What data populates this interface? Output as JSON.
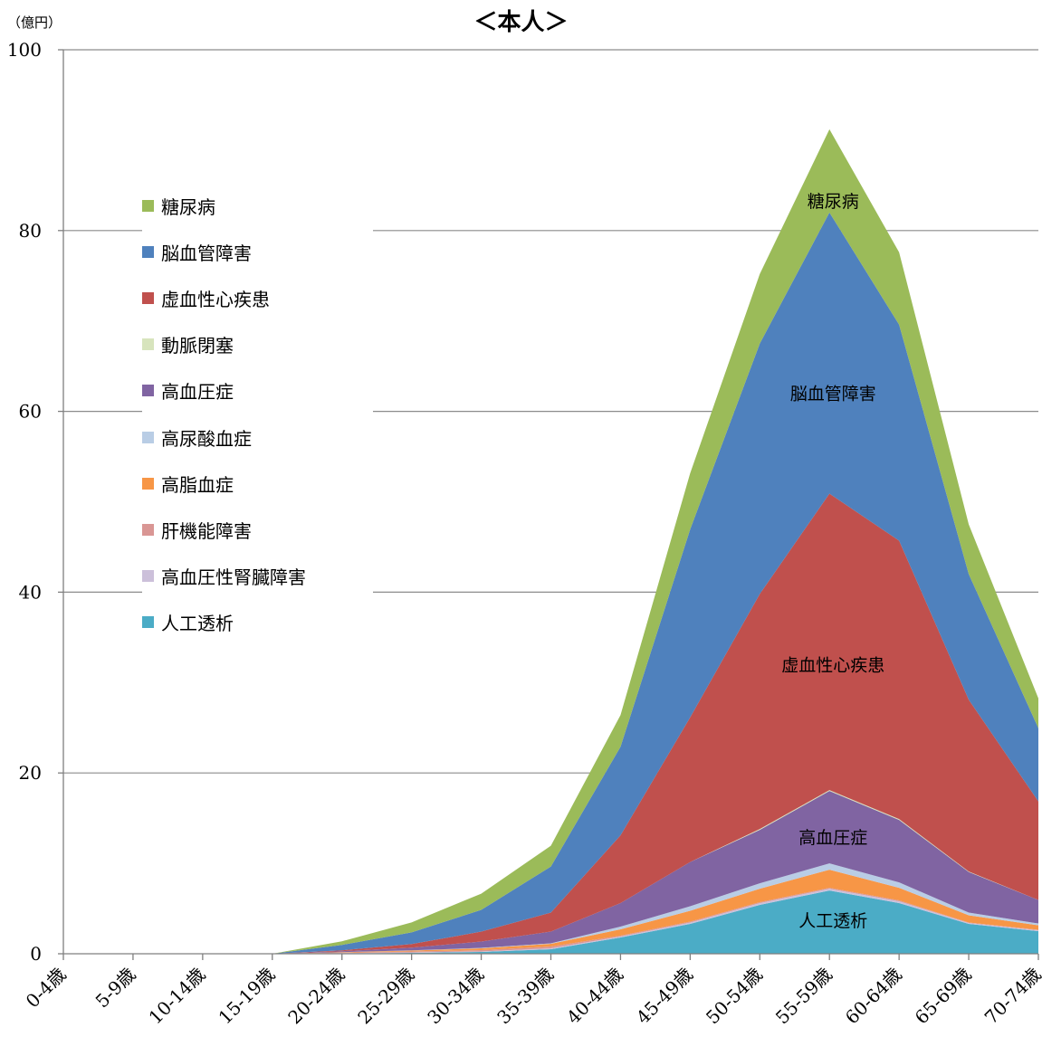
{
  "chart_data": {
    "type": "area",
    "stacked": true,
    "title": "＜本人＞",
    "unit_label": "（億円）",
    "categories": [
      "0-4歳",
      "5-9歳",
      "10-14歳",
      "15-19歳",
      "20-24歳",
      "25-29歳",
      "30-34歳",
      "35-39歳",
      "40-44歳",
      "45-49歳",
      "50-54歳",
      "55-59歳",
      "60-64歳",
      "65-69歳",
      "70-74歳"
    ],
    "ylim": [
      0,
      100
    ],
    "yticks": [
      0,
      20,
      40,
      60,
      80,
      100
    ],
    "grid": true,
    "legend_position": "left",
    "series": [
      {
        "name": "人工透析",
        "color": "#4BACC6",
        "values": [
          0,
          0,
          0,
          0,
          0.05,
          0.1,
          0.2,
          0.5,
          1.8,
          3.3,
          5.4,
          7.0,
          5.6,
          3.3,
          2.5
        ]
      },
      {
        "name": "高血圧性腎臓障害",
        "color": "#CCC0DA",
        "values": [
          0,
          0,
          0,
          0,
          0.02,
          0.05,
          0.05,
          0.1,
          0.1,
          0.15,
          0.2,
          0.2,
          0.2,
          0.1,
          0.1
        ]
      },
      {
        "name": "肝機能障害",
        "color": "#D99694",
        "values": [
          0,
          0,
          0,
          0,
          0.05,
          0.1,
          0.15,
          0.2,
          0.1,
          0.1,
          0.1,
          0.1,
          0.1,
          0.05,
          0.05
        ]
      },
      {
        "name": "高脂血症",
        "color": "#F79646",
        "values": [
          0,
          0,
          0,
          0,
          0.05,
          0.1,
          0.2,
          0.3,
          0.7,
          1.2,
          1.5,
          2.0,
          1.4,
          0.8,
          0.5
        ]
      },
      {
        "name": "高尿酸血症",
        "color": "#B9CDE5",
        "values": [
          0,
          0,
          0,
          0,
          0.01,
          0.02,
          0.05,
          0.05,
          0.3,
          0.5,
          0.6,
          0.7,
          0.6,
          0.3,
          0.2
        ]
      },
      {
        "name": "高血圧症",
        "color": "#8064A2",
        "values": [
          0,
          0,
          0,
          0,
          0.1,
          0.3,
          0.7,
          1.3,
          2.6,
          4.9,
          5.9,
          8.0,
          6.9,
          4.5,
          2.6
        ]
      },
      {
        "name": "動脈閉塞",
        "color": "#D7E4BD",
        "values": [
          0,
          0,
          0,
          0,
          0,
          0,
          0,
          0,
          0,
          0,
          0.1,
          0.1,
          0.1,
          0.05,
          0
        ]
      },
      {
        "name": "虚血性心疾患",
        "color": "#C0504D",
        "values": [
          0,
          0,
          0,
          0,
          0.1,
          0.4,
          1.1,
          2.1,
          7.5,
          16.0,
          26.0,
          32.8,
          30.8,
          19.0,
          10.9
        ]
      },
      {
        "name": "脳血管障害",
        "color": "#4F81BD",
        "values": [
          0,
          0,
          0,
          0,
          0.6,
          1.3,
          2.4,
          5.1,
          9.8,
          20.8,
          27.7,
          31.1,
          23.9,
          13.9,
          8.1
        ]
      },
      {
        "name": "糖尿病",
        "color": "#9BBB59",
        "values": [
          0,
          0,
          0,
          0,
          0.4,
          1.1,
          1.8,
          2.3,
          3.5,
          6.2,
          7.7,
          9.2,
          8.0,
          5.5,
          3.3
        ]
      }
    ],
    "annotations": [
      {
        "text": "糖尿病",
        "category": "55-59歳",
        "y": 82.6
      },
      {
        "text": "脳血管障害",
        "category": "55-59歳",
        "y": 61.3
      },
      {
        "text": "虚血性心疾患",
        "category": "55-59歳",
        "y": 31.3
      },
      {
        "text": "高血圧症",
        "category": "55-59歳",
        "y": 12.2
      },
      {
        "text": "人工透析",
        "category": "55-59歳",
        "y": 3.0
      }
    ]
  },
  "legend_order": [
    "糖尿病",
    "脳血管障害",
    "虚血性心疾患",
    "動脈閉塞",
    "高血圧症",
    "高尿酸血症",
    "高脂血症",
    "肝機能障害",
    "高血圧性腎臓障害",
    "人工透析"
  ]
}
